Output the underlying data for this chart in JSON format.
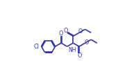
{
  "bg_color": "#ffffff",
  "line_color": "#3333aa",
  "line_width": 1.2,
  "figsize": [
    1.83,
    1.07
  ],
  "dpi": 100,
  "xlim": [
    -0.05,
    1.0
  ],
  "ylim": [
    -0.05,
    1.0
  ]
}
